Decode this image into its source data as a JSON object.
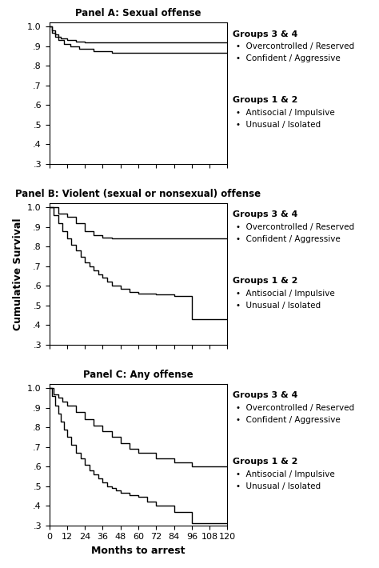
{
  "chart_data": [
    {
      "type": "step",
      "title": "Panel A: Sexual offense",
      "xlim": [
        0,
        120
      ],
      "xticks": [
        0,
        12,
        24,
        36,
        48,
        60,
        72,
        84,
        96,
        108,
        120
      ],
      "ylim": [
        0.3,
        1.02
      ],
      "yticks": [
        {
          "value": 0.3,
          "label": ".3"
        },
        {
          "value": 0.4,
          "label": ".4"
        },
        {
          "value": 0.5,
          "label": ".5"
        },
        {
          "value": 0.6,
          "label": ".6"
        },
        {
          "value": 0.7,
          "label": ".7"
        },
        {
          "value": 0.8,
          "label": ".8"
        },
        {
          "value": 0.9,
          "label": ".9"
        },
        {
          "value": 1.0,
          "label": "1.0"
        }
      ],
      "tick_labels": "y",
      "series": [
        {
          "color": "#000000",
          "x": [
            0,
            2,
            4,
            6,
            8,
            12,
            18,
            24,
            36,
            120
          ],
          "values": [
            1.0,
            0.98,
            0.96,
            0.95,
            0.94,
            0.93,
            0.925,
            0.92,
            0.92,
            0.92
          ]
        },
        {
          "color": "#000000",
          "x": [
            0,
            2,
            4,
            6,
            10,
            14,
            20,
            30,
            42,
            120
          ],
          "values": [
            1.0,
            0.97,
            0.95,
            0.93,
            0.91,
            0.9,
            0.885,
            0.875,
            0.865,
            0.865
          ]
        }
      ],
      "annotations": [
        {
          "title": "Groups 3 & 4",
          "items": [
            "•  Overcontrolled / Reserved",
            "•  Confident / Aggressive"
          ]
        },
        {
          "title": "Groups 1 & 2",
          "items": [
            "•  Antisocial / Impulsive",
            "•  Unusual / Isolated"
          ]
        }
      ]
    },
    {
      "type": "step",
      "title": "Panel B: Violent (sexual or nonsexual) offense",
      "y_label": "Cumulative Survival",
      "xlim": [
        0,
        120
      ],
      "xticks": [
        0,
        12,
        24,
        36,
        48,
        60,
        72,
        84,
        96,
        108,
        120
      ],
      "ylim": [
        0.3,
        1.02
      ],
      "yticks": [
        {
          "value": 0.3,
          "label": ".3"
        },
        {
          "value": 0.4,
          "label": ".4"
        },
        {
          "value": 0.5,
          "label": ".5"
        },
        {
          "value": 0.6,
          "label": ".6"
        },
        {
          "value": 0.7,
          "label": ".7"
        },
        {
          "value": 0.8,
          "label": ".8"
        },
        {
          "value": 0.9,
          "label": ".9"
        },
        {
          "value": 1.0,
          "label": "1.0"
        }
      ],
      "tick_labels": "y",
      "series": [
        {
          "color": "#000000",
          "x": [
            0,
            6,
            12,
            18,
            24,
            30,
            36,
            42,
            120
          ],
          "values": [
            1.0,
            0.97,
            0.95,
            0.92,
            0.88,
            0.86,
            0.845,
            0.84,
            0.84
          ]
        },
        {
          "color": "#000000",
          "x": [
            0,
            3,
            6,
            9,
            12,
            15,
            18,
            21,
            24,
            27,
            30,
            33,
            36,
            39,
            42,
            48,
            54,
            60,
            72,
            84,
            96,
            120
          ],
          "values": [
            1.0,
            0.96,
            0.92,
            0.88,
            0.84,
            0.81,
            0.78,
            0.75,
            0.72,
            0.7,
            0.68,
            0.66,
            0.64,
            0.62,
            0.6,
            0.585,
            0.57,
            0.56,
            0.555,
            0.55,
            0.43,
            0.43
          ]
        }
      ],
      "annotations": [
        {
          "title": "Groups 3 & 4",
          "items": [
            "•  Overcontrolled / Reserved",
            "•  Confident / Aggressive"
          ]
        },
        {
          "title": "Groups 1 & 2",
          "items": [
            "•  Antisocial / Impulsive",
            "•  Unusual / Isolated"
          ]
        }
      ]
    },
    {
      "type": "step",
      "title": "Panel C: Any offense",
      "x_label": "Months to arrest",
      "xlim": [
        0,
        120
      ],
      "xticks": [
        0,
        12,
        24,
        36,
        48,
        60,
        72,
        84,
        96,
        108,
        120
      ],
      "ylim": [
        0.3,
        1.02
      ],
      "yticks": [
        {
          "value": 0.3,
          "label": ".3"
        },
        {
          "value": 0.4,
          "label": ".4"
        },
        {
          "value": 0.5,
          "label": ".5"
        },
        {
          "value": 0.6,
          "label": ".6"
        },
        {
          "value": 0.7,
          "label": ".7"
        },
        {
          "value": 0.8,
          "label": ".8"
        },
        {
          "value": 0.9,
          "label": ".9"
        },
        {
          "value": 1.0,
          "label": "1.0"
        }
      ],
      "series": [
        {
          "color": "#000000",
          "x": [
            0,
            3,
            6,
            9,
            12,
            18,
            24,
            30,
            36,
            42,
            48,
            54,
            60,
            72,
            84,
            96,
            120
          ],
          "values": [
            1.0,
            0.97,
            0.95,
            0.93,
            0.91,
            0.88,
            0.84,
            0.81,
            0.78,
            0.75,
            0.72,
            0.69,
            0.67,
            0.64,
            0.62,
            0.6,
            0.6
          ]
        },
        {
          "color": "#000000",
          "x": [
            0,
            2,
            4,
            6,
            8,
            10,
            12,
            15,
            18,
            21,
            24,
            27,
            30,
            33,
            36,
            39,
            42,
            45,
            48,
            54,
            60,
            66,
            72,
            84,
            96,
            120
          ],
          "values": [
            1.0,
            0.96,
            0.91,
            0.87,
            0.83,
            0.79,
            0.75,
            0.71,
            0.67,
            0.64,
            0.61,
            0.58,
            0.56,
            0.54,
            0.52,
            0.5,
            0.49,
            0.48,
            0.465,
            0.455,
            0.445,
            0.42,
            0.4,
            0.37,
            0.31,
            0.31
          ]
        }
      ],
      "annotations": [
        {
          "title": "Groups 3 & 4",
          "items": [
            "•  Overcontrolled / Reserved",
            "•  Confident / Aggressive"
          ]
        },
        {
          "title": "Groups 1 & 2",
          "items": [
            "•  Antisocial / Impulsive",
            "•  Unusual / Isolated"
          ]
        }
      ]
    }
  ]
}
